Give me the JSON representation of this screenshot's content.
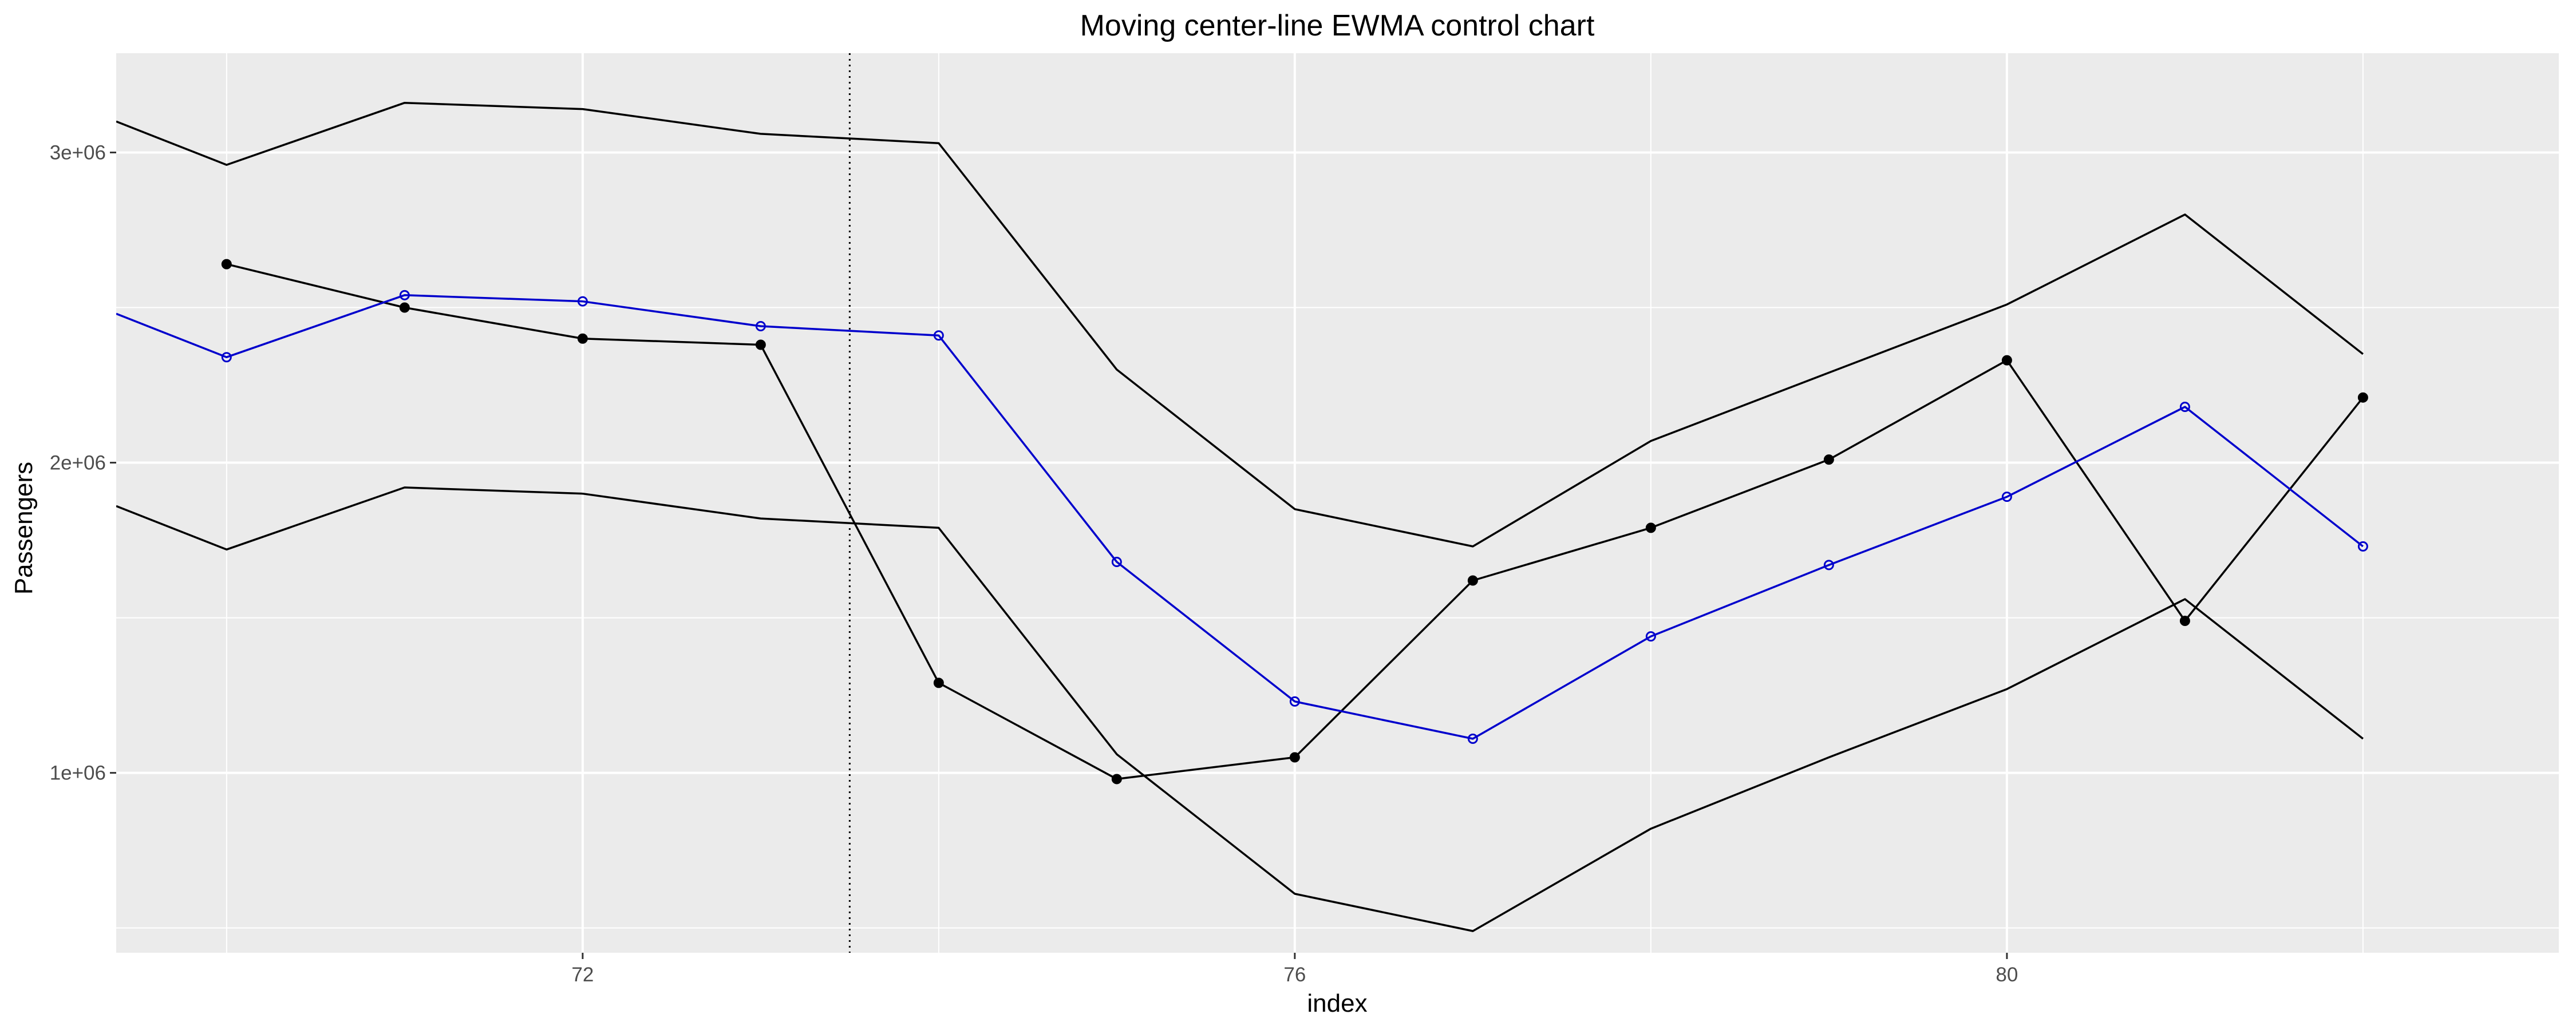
{
  "chart_data": {
    "type": "line",
    "title": "Moving center-line EWMA control chart",
    "xlabel": "index",
    "ylabel": "Passengers",
    "xlim": [
      69.38,
      83.1
    ],
    "ylim": [
      420000,
      3320000
    ],
    "x_ticks": [
      {
        "value": 72,
        "label": "72"
      },
      {
        "value": 76,
        "label": "76"
      },
      {
        "value": 80,
        "label": "80"
      }
    ],
    "y_ticks": [
      {
        "value": 1000000,
        "label": "1e+06"
      },
      {
        "value": 2000000,
        "label": "2e+06"
      },
      {
        "value": 3000000,
        "label": "3e+06"
      }
    ],
    "x_minor_ticks": [
      70,
      74,
      78,
      82
    ],
    "y_minor_ticks": [
      500000,
      1500000,
      2500000
    ],
    "vline_x": 73.5,
    "grid": true,
    "background": "#ebebeb",
    "series": [
      {
        "key": "observed",
        "color": "#000000",
        "marker": "filled",
        "x": [
          70,
          71,
          72,
          73,
          74,
          75,
          76,
          77,
          78,
          79,
          80,
          81,
          82
        ],
        "y": [
          2640000,
          2500000,
          2400000,
          2380000,
          1290000,
          980000,
          1050000,
          1620000,
          1790000,
          2010000,
          2330000,
          1490000,
          2210000
        ]
      },
      {
        "key": "center",
        "color": "#0000cc",
        "marker": "open",
        "x": [
          69.38,
          70,
          71,
          72,
          73,
          74,
          75,
          76,
          77,
          78,
          79,
          80,
          81,
          82
        ],
        "y": [
          2480000,
          2340000,
          2540000,
          2520000,
          2440000,
          2410000,
          1680000,
          1230000,
          1110000,
          1440000,
          1670000,
          1890000,
          2180000,
          1730000
        ]
      },
      {
        "key": "upper",
        "color": "#000000",
        "marker": "none",
        "x": [
          69.38,
          70,
          71,
          72,
          73,
          74,
          75,
          76,
          77,
          78,
          79,
          80,
          81,
          82
        ],
        "y": [
          3100000,
          2960000,
          3160000,
          3140000,
          3060000,
          3030000,
          2300000,
          1850000,
          1730000,
          2070000,
          2290000,
          2510000,
          2800000,
          2350000
        ]
      },
      {
        "key": "lower",
        "color": "#000000",
        "marker": "none",
        "x": [
          69.38,
          70,
          71,
          72,
          73,
          74,
          75,
          76,
          77,
          78,
          79,
          80,
          81,
          82
        ],
        "y": [
          1860000,
          1720000,
          1920000,
          1900000,
          1820000,
          1790000,
          1060000,
          610000,
          490000,
          820000,
          1050000,
          1270000,
          1560000,
          1110000
        ]
      }
    ]
  }
}
